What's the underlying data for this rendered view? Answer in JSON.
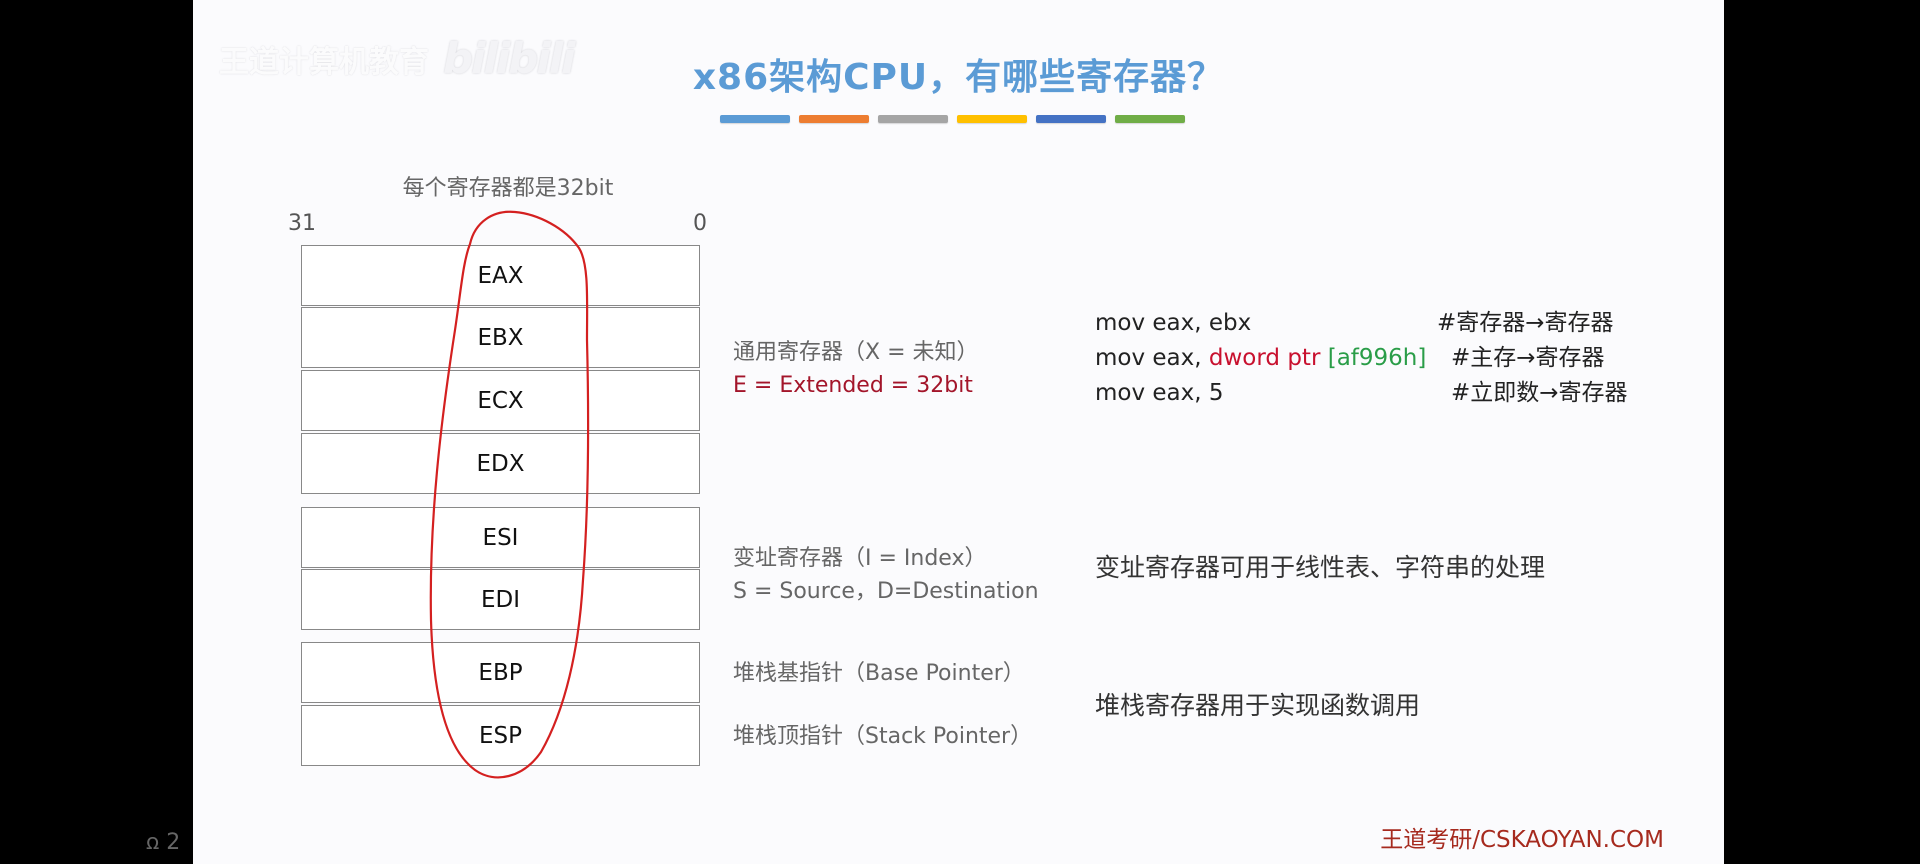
{
  "watermark": {
    "channel": "王道计算机教育",
    "brand": "bilibili"
  },
  "slide": {
    "title": "x86架构CPU，有哪些寄存器？",
    "color_bar": [
      "#5b9bd5",
      "#ed7d31",
      "#a5a5a5",
      "#ffc000",
      "#4472c4",
      "#70ad47"
    ],
    "caption": "每个寄存器都是32bit",
    "bit_high": "31",
    "bit_low": "0",
    "registers": {
      "eax": "EAX",
      "ebx": "EBX",
      "ecx": "ECX",
      "edx": "EDX",
      "esi": "ESI",
      "edi": "EDI",
      "ebp": "EBP",
      "esp": "ESP"
    },
    "general": {
      "label": "通用寄存器（X = 未知）",
      "extended": "E = Extended = 32bit"
    },
    "index": {
      "label": "变址寄存器（I = Index）",
      "detail": "S = Source，D=Destination"
    },
    "stack": {
      "base": "堆栈基指针（Base Pointer）",
      "top": "堆栈顶指针（Stack Pointer）"
    },
    "code": {
      "line1": "mov eax, ebx",
      "line1_comment": "#寄存器→寄存器",
      "line2_prefix": "mov eax, ",
      "line2_kw": "dword ptr",
      "line2_addr": "[af996h]",
      "line2_comment": "#主存→寄存器",
      "line3": "mov eax, 5",
      "line3_comment": "#立即数→寄存器"
    },
    "notes": {
      "index_note": "变址寄存器可用于线性表、字符串的处理",
      "stack_note": "堆栈寄存器用于实现函数调用"
    },
    "footer": "王道考研/CSKAOYAN.COM"
  },
  "hud": {
    "viewers": "ꭥ 2"
  },
  "colors": {
    "title": "#5b9bd5",
    "annotation_ellipse": "#d42020",
    "footer": "#a62a1e"
  }
}
